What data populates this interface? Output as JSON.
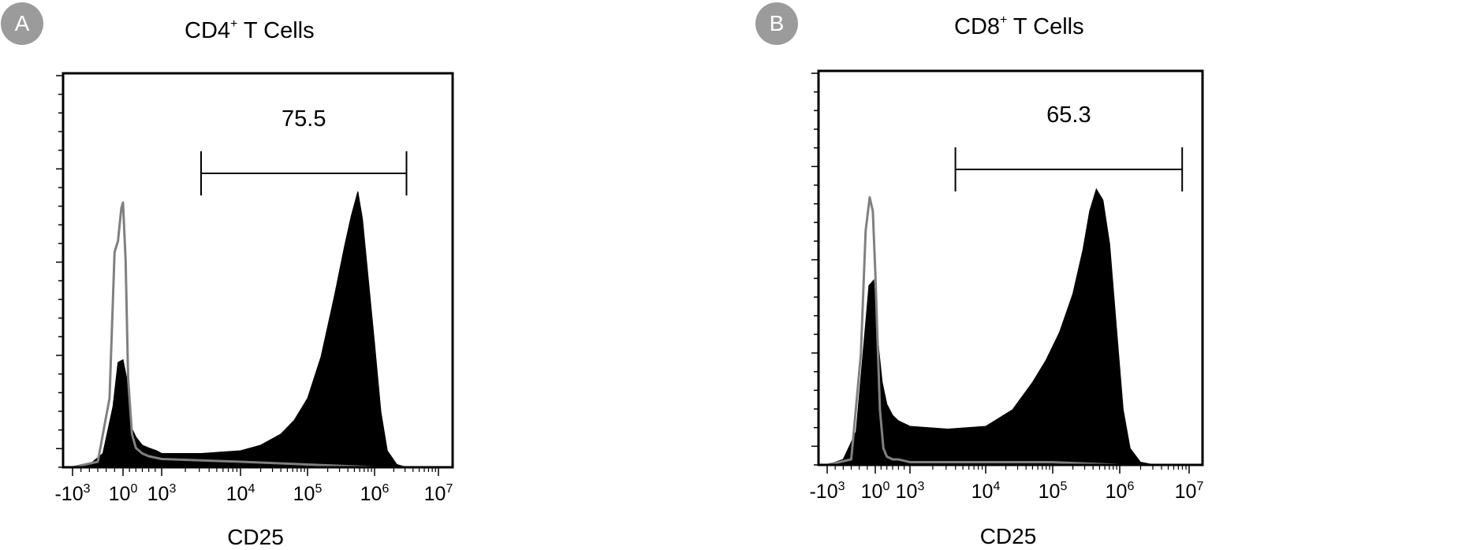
{
  "panels": [
    {
      "badge": "A",
      "title_main": "CD4",
      "title_sup": "+",
      "title_rest": " T Cells",
      "gate_value": "75.5",
      "xlabel": "CD25"
    },
    {
      "badge": "B",
      "title_main": "CD8",
      "title_sup": "+",
      "title_rest": " T Cells",
      "gate_value": "65.3",
      "xlabel": "CD25"
    }
  ],
  "chart_data": [
    {
      "type": "area",
      "title": "CD4+ T Cells",
      "xlabel": "CD25",
      "ylabel": "",
      "x_scale": "biexponential",
      "x_ticks": [
        "-10^3",
        "10^0",
        "10^3",
        "10^4",
        "10^5",
        "10^6",
        "10^7"
      ],
      "x_tick_exponents": [
        -3,
        0,
        3,
        4,
        5,
        6,
        7
      ],
      "gate": {
        "label": "75.5",
        "from_log10": 3.5,
        "to_log10": 6.5
      },
      "series": [
        {
          "fill": "#000000",
          "x_log10": [
            -3,
            -2,
            -1.2,
            -0.6,
            -0.3,
            0,
            0.3,
            0.6,
            1,
            1.5,
            2,
            2.6,
            3,
            3.5,
            4,
            4.3,
            4.6,
            4.8,
            5,
            5.2,
            5.4,
            5.55,
            5.65,
            5.75,
            5.82,
            5.9,
            6.0,
            6.1,
            6.2,
            6.35,
            6.5
          ],
          "y_norm": [
            0,
            0.01,
            0.05,
            0.22,
            0.38,
            0.39,
            0.32,
            0.15,
            0.11,
            0.08,
            0.07,
            0.06,
            0.05,
            0.05,
            0.06,
            0.08,
            0.12,
            0.17,
            0.25,
            0.4,
            0.62,
            0.8,
            0.91,
            1.0,
            0.9,
            0.7,
            0.45,
            0.2,
            0.06,
            0.01,
            0
          ]
        },
        {
          "stroke": "#808080",
          "x_log10": [
            -3,
            -1.5,
            -0.8,
            -0.5,
            -0.3,
            -0.1,
            0,
            0.2,
            0.4,
            0.7,
            1,
            1.5,
            2,
            3,
            4,
            5,
            6,
            6.5
          ],
          "y_norm": [
            0,
            0.02,
            0.25,
            0.78,
            0.82,
            0.94,
            0.96,
            0.75,
            0.32,
            0.12,
            0.07,
            0.05,
            0.04,
            0.03,
            0.02,
            0.01,
            0,
            0
          ]
        }
      ]
    },
    {
      "type": "area",
      "title": "CD8+ T Cells",
      "xlabel": "CD25",
      "ylabel": "",
      "x_scale": "biexponential",
      "x_ticks": [
        "-10^3",
        "10^0",
        "10^3",
        "10^4",
        "10^5",
        "10^6",
        "10^7"
      ],
      "x_tick_exponents": [
        -3,
        0,
        3,
        4,
        5,
        6,
        7
      ],
      "gate": {
        "label": "65.3",
        "from_log10": 3.6,
        "to_log10": 6.9
      },
      "series": [
        {
          "fill": "#000000",
          "x_log10": [
            -3,
            -2,
            -1.2,
            -0.7,
            -0.4,
            -0.1,
            0,
            0.3,
            0.6,
            1,
            1.5,
            2,
            2.5,
            3,
            3.5,
            4,
            4.4,
            4.7,
            4.9,
            5.1,
            5.3,
            5.45,
            5.55,
            5.65,
            5.75,
            5.85,
            5.95,
            6.05,
            6.15,
            6.3,
            6.5
          ],
          "y_norm": [
            0,
            0.02,
            0.12,
            0.45,
            0.65,
            0.67,
            0.6,
            0.42,
            0.3,
            0.22,
            0.18,
            0.16,
            0.15,
            0.14,
            0.13,
            0.14,
            0.2,
            0.3,
            0.38,
            0.48,
            0.62,
            0.78,
            0.92,
            1.0,
            0.96,
            0.8,
            0.5,
            0.2,
            0.06,
            0.01,
            0
          ]
        },
        {
          "stroke": "#808080",
          "x_log10": [
            -3,
            -1.5,
            -0.9,
            -0.6,
            -0.35,
            -0.15,
            0,
            0.2,
            0.4,
            0.7,
            1,
            1.5,
            2,
            3,
            4,
            5,
            6,
            6.5
          ],
          "y_norm": [
            0,
            0.02,
            0.4,
            0.85,
            0.97,
            0.92,
            0.7,
            0.45,
            0.2,
            0.06,
            0.03,
            0.02,
            0.02,
            0.01,
            0.01,
            0.01,
            0,
            0
          ]
        }
      ]
    }
  ]
}
